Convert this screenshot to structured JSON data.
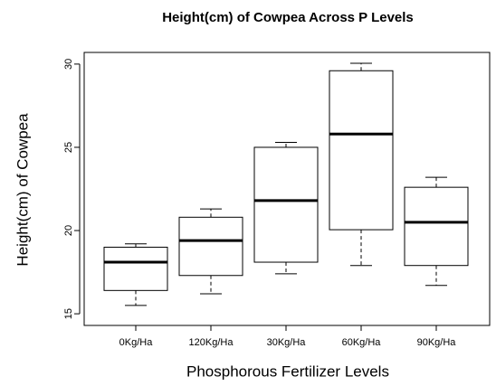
{
  "chart_data": {
    "type": "boxplot",
    "title": "Height(cm) of Cowpea Across P Levels",
    "xlabel": "Phosphorous Fertilizer Levels",
    "ylabel": "Height(cm) of Cowpea",
    "categories": [
      "0Kg/Ha",
      "120Kg/Ha",
      "30Kg/Ha",
      "60Kg/Ha",
      "90Kg/Ha"
    ],
    "min": [
      15.5,
      16.2,
      17.4,
      17.9,
      16.7
    ],
    "q1": [
      16.4,
      17.3,
      18.1,
      20.05,
      17.9
    ],
    "median": [
      18.1,
      19.4,
      21.8,
      25.8,
      20.5
    ],
    "q3": [
      19.0,
      20.8,
      25.0,
      29.6,
      22.6
    ],
    "max": [
      19.2,
      21.3,
      25.3,
      30.05,
      23.2
    ],
    "color": "#ffffff",
    "ylim": [
      14.3,
      30.7
    ],
    "yticks": [
      15,
      20,
      25,
      30
    ]
  }
}
